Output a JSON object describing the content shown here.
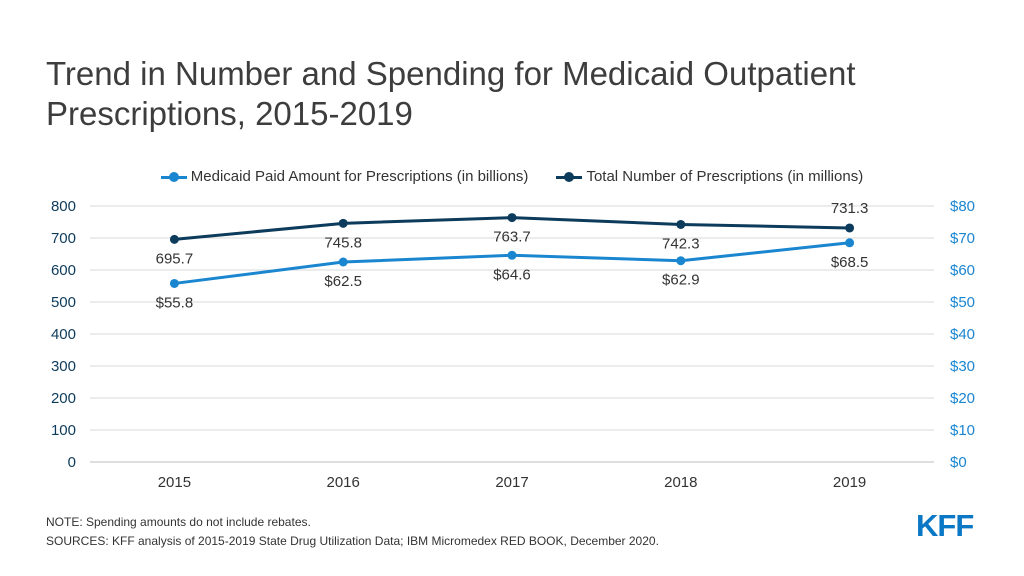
{
  "title": "Trend in Number and Spending for Medicaid Outpatient\nPrescriptions, 2015-2019",
  "legend": [
    {
      "label": "Medicaid Paid Amount for Prescriptions (in billions)",
      "color": "#1a86d0"
    },
    {
      "label": "Total Number of Prescriptions (in millions)",
      "color": "#0d3b5c"
    }
  ],
  "note": "NOTE: Spending amounts do not include rebates.",
  "sources": "SOURCES: KFF analysis of 2015-2019 State Drug Utilization Data; IBM Micromedex RED BOOK, December 2020.",
  "logo": "KFF",
  "chart_data": {
    "type": "line",
    "categories": [
      "2015",
      "2016",
      "2017",
      "2018",
      "2019"
    ],
    "series": [
      {
        "name": "Medicaid Paid Amount for Prescriptions (in billions)",
        "axis": "right",
        "color": "#1a86d0",
        "values": [
          55.8,
          62.5,
          64.6,
          62.9,
          68.5
        ],
        "labels": [
          "$55.8",
          "$62.5",
          "$64.6",
          "$62.9",
          "$68.5"
        ]
      },
      {
        "name": "Total Number of Prescriptions (in millions)",
        "axis": "left",
        "color": "#0d3b5c",
        "values": [
          695.7,
          745.8,
          763.7,
          742.3,
          731.3
        ],
        "labels": [
          "695.7",
          "745.8",
          "763.7",
          "742.3",
          "731.3"
        ]
      }
    ],
    "yleft": {
      "ylim": [
        0,
        800
      ],
      "ticks": [
        "0",
        "100",
        "200",
        "300",
        "400",
        "500",
        "600",
        "700",
        "800"
      ],
      "color": "#0d3b5c"
    },
    "yright": {
      "ylim": [
        0,
        80
      ],
      "ticks": [
        "$0",
        "$10",
        "$20",
        "$30",
        "$40",
        "$50",
        "$60",
        "$70",
        "$80"
      ],
      "color": "#1a86d0"
    },
    "grid": true,
    "legend_position": "top-center"
  }
}
